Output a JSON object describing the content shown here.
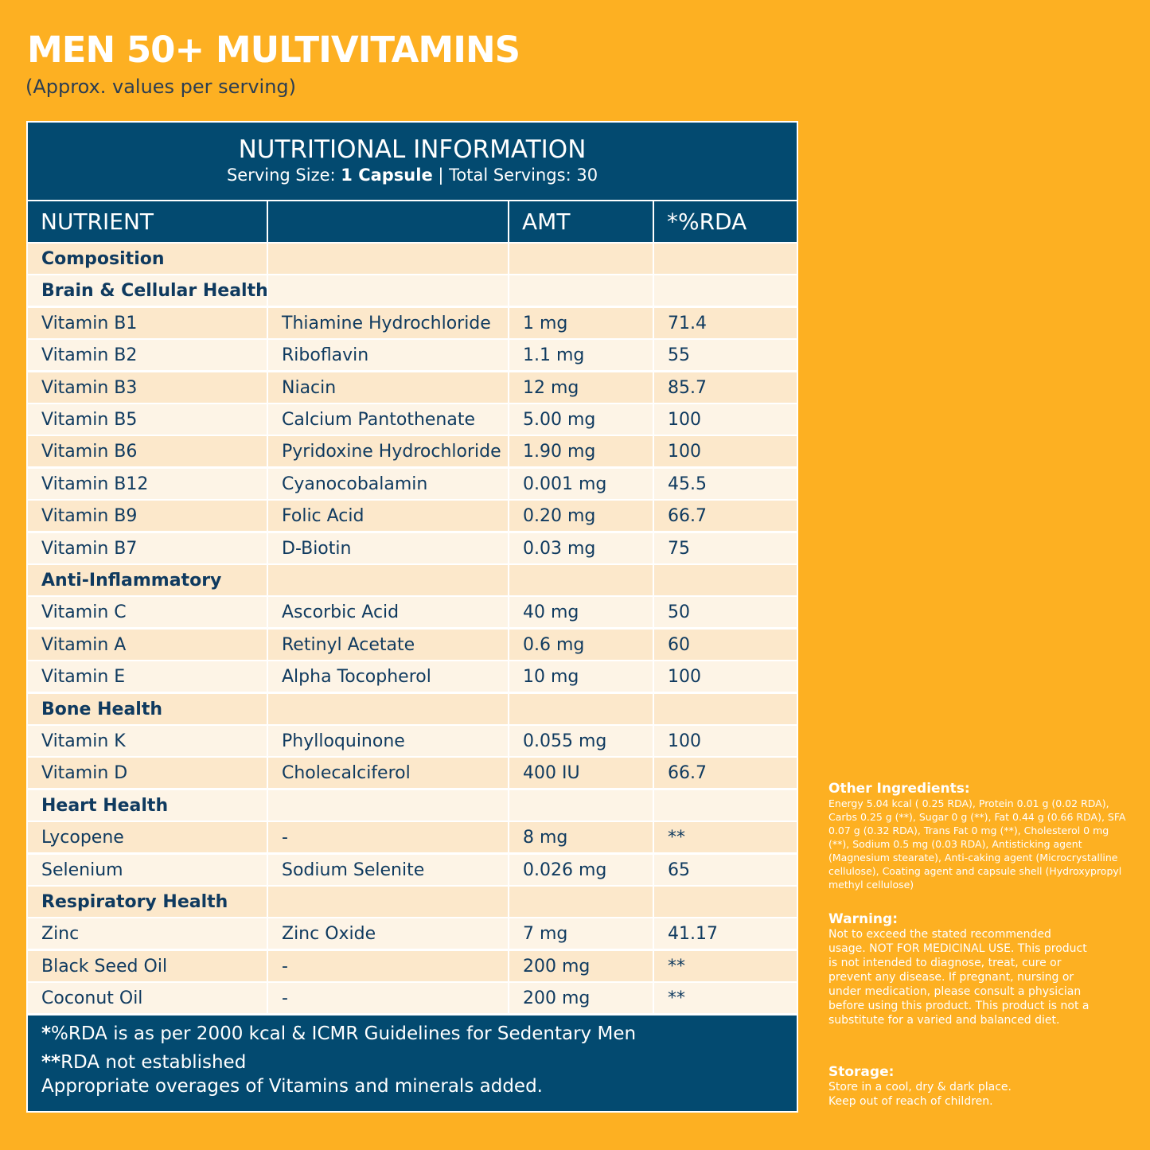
{
  "header": {
    "title": "MEN 50+ MULTIVITAMINS",
    "subtitle": "(Approx. values per serving)"
  },
  "table": {
    "heading": "NUTRITIONAL INFORMATION",
    "serving_label": "Serving Size: ",
    "serving_value": "1 Capsule",
    "separator": " | Total Servings: ",
    "servings_value": "30",
    "columns": [
      "NUTRIENT",
      "",
      "AMT",
      "*%RDA"
    ],
    "rows": [
      {
        "type": "section",
        "name": "Composition",
        "source": "",
        "amt": "",
        "rda": ""
      },
      {
        "type": "section",
        "name": "Brain & Cellular Health",
        "source": "",
        "amt": "",
        "rda": ""
      },
      {
        "type": "item",
        "name": "Vitamin B1",
        "source": "Thiamine Hydrochloride",
        "amt": "1 mg",
        "rda": "71.4"
      },
      {
        "type": "item",
        "name": "Vitamin B2",
        "source": "Riboflavin",
        "amt": "1.1 mg",
        "rda": "55"
      },
      {
        "type": "item",
        "name": "Vitamin B3",
        "source": "Niacin",
        "amt": "12 mg",
        "rda": "85.7"
      },
      {
        "type": "item",
        "name": "Vitamin B5",
        "source": "Calcium Pantothenate",
        "amt": "5.00 mg",
        "rda": "100"
      },
      {
        "type": "item",
        "name": "Vitamin B6",
        "source": "Pyridoxine Hydrochloride",
        "amt": "1.90 mg",
        "rda": "100"
      },
      {
        "type": "item",
        "name": "Vitamin B12",
        "source": "Cyanocobalamin",
        "amt": "0.001 mg",
        "rda": "45.5"
      },
      {
        "type": "item",
        "name": "Vitamin B9",
        "source": "Folic Acid",
        "amt": "0.20 mg",
        "rda": "66.7"
      },
      {
        "type": "item",
        "name": "Vitamin B7",
        "source": "D-Biotin",
        "amt": "0.03 mg",
        "rda": "75"
      },
      {
        "type": "section",
        "name": "Anti-Inflammatory",
        "source": "",
        "amt": "",
        "rda": ""
      },
      {
        "type": "item",
        "name": "Vitamin C",
        "source": "Ascorbic Acid",
        "amt": "40 mg",
        "rda": "50"
      },
      {
        "type": "item",
        "name": "Vitamin A",
        "source": "Retinyl Acetate",
        "amt": "0.6 mg",
        "rda": "60"
      },
      {
        "type": "item",
        "name": "Vitamin E",
        "source": "Alpha Tocopherol",
        "amt": "10 mg",
        "rda": "100"
      },
      {
        "type": "section",
        "name": "Bone Health",
        "source": "",
        "amt": "",
        "rda": ""
      },
      {
        "type": "item",
        "name": "Vitamin K",
        "source": "Phylloquinone",
        "amt": "0.055 mg",
        "rda": "100"
      },
      {
        "type": "item",
        "name": "Vitamin D",
        "source": "Cholecalciferol",
        "amt": "400 IU",
        "rda": "66.7"
      },
      {
        "type": "section",
        "name": "Heart Health",
        "source": "",
        "amt": "",
        "rda": ""
      },
      {
        "type": "item",
        "name": "Lycopene",
        "source": "-",
        "amt": "8 mg",
        "rda": "**"
      },
      {
        "type": "item",
        "name": "Selenium",
        "source": "Sodium Selenite",
        "amt": "0.026 mg",
        "rda": "65"
      },
      {
        "type": "section",
        "name": "Respiratory Health",
        "source": "",
        "amt": "",
        "rda": ""
      },
      {
        "type": "item",
        "name": "Zinc",
        "source": "Zinc Oxide",
        "amt": "7 mg",
        "rda": "41.17"
      },
      {
        "type": "item",
        "name": "Black Seed Oil",
        "source": "-",
        "amt": "200 mg",
        "rda": "**"
      },
      {
        "type": "item",
        "name": "Coconut Oil",
        "source": "-",
        "amt": "200 mg",
        "rda": "**"
      }
    ],
    "footnotes": {
      "line1_mark": "*",
      "line1": "%RDA is as per 2000 kcal & ICMR Guidelines for Sedentary Men",
      "line2_mark": "**",
      "line2": "RDA not established",
      "line3": "Appropriate overages of Vitamins and minerals added."
    }
  },
  "side": {
    "other_title": "Other Ingredients:",
    "other_body": "Energy 5.04 kcal ( 0.25 RDA), Protein 0.01 g (0.02 RDA), Carbs 0.25 g (**), Sugar 0 g (**), Fat 0.44 g (0.66 RDA), SFA 0.07 g (0.32 RDA), Trans Fat 0 mg (**), Cholesterol 0 mg (**), Sodium 0.5 mg (0.03 RDA), Antisticking agent (Magnesium stearate), Anti-caking agent (Microcrystalline cellulose), Coating agent and capsule shell (Hydroxypropyl methyl cellulose)",
    "warning_title": "Warning:",
    "warning_body": "Not to exceed the stated recommended usage. NOT FOR MEDICINAL USE. This product is not intended to diagnose, treat, cure or prevent any disease. If pregnant, nursing or under medication, please consult a physician before using this product. This product is not a substitute for a varied and balanced diet.",
    "storage_title": "Storage:",
    "storage_line1": "Store in a cool, dry & dark place.",
    "storage_line2": "Keep out of reach of children."
  },
  "colors": {
    "background": "#FDB022",
    "navy": "#034A70",
    "row_light": "#FDF4E6",
    "row_dark": "#FCE8CB"
  }
}
